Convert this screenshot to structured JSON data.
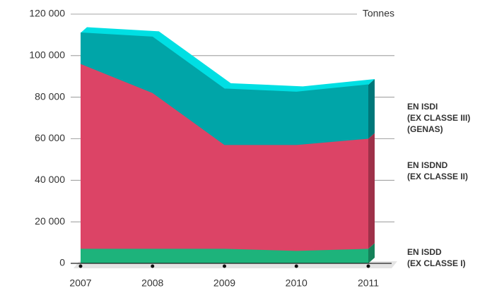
{
  "chart_data": {
    "type": "stacked_area",
    "unit_label": "Tonnes",
    "categories": [
      "2007",
      "2008",
      "2009",
      "2010",
      "2011"
    ],
    "series": [
      {
        "name": [
          "EN ISDD",
          "(EX CLASSE I)"
        ],
        "color": "#1db37b",
        "values": [
          7000,
          7000,
          7000,
          6000,
          7000
        ]
      },
      {
        "name": [
          "EN ISDND",
          "(EX CLASSE II)"
        ],
        "color": "#dc4466",
        "values": [
          89000,
          75000,
          50000,
          51000,
          53000
        ]
      },
      {
        "name": [
          "EN ISDI",
          "(EX CLASSE III)",
          "(GENAS)"
        ],
        "color": "#00a5a8",
        "values": [
          15000,
          27000,
          27000,
          25500,
          26000
        ]
      }
    ],
    "legend_colors": [
      "#1db37b",
      "#dc4466",
      "#1aa6d8"
    ],
    "ylim": [
      0,
      120000
    ],
    "yticks": [
      0,
      {
        "value": 20000,
        "label": "20 000"
      },
      {
        "value": 40000,
        "label": "40 000"
      },
      {
        "value": 60000,
        "label": "60 000"
      },
      {
        "value": 80000,
        "label": "80 000"
      },
      {
        "value": 100000,
        "label": "100 000"
      },
      {
        "value": 120000,
        "label": "120 000"
      }
    ],
    "grid": true
  }
}
